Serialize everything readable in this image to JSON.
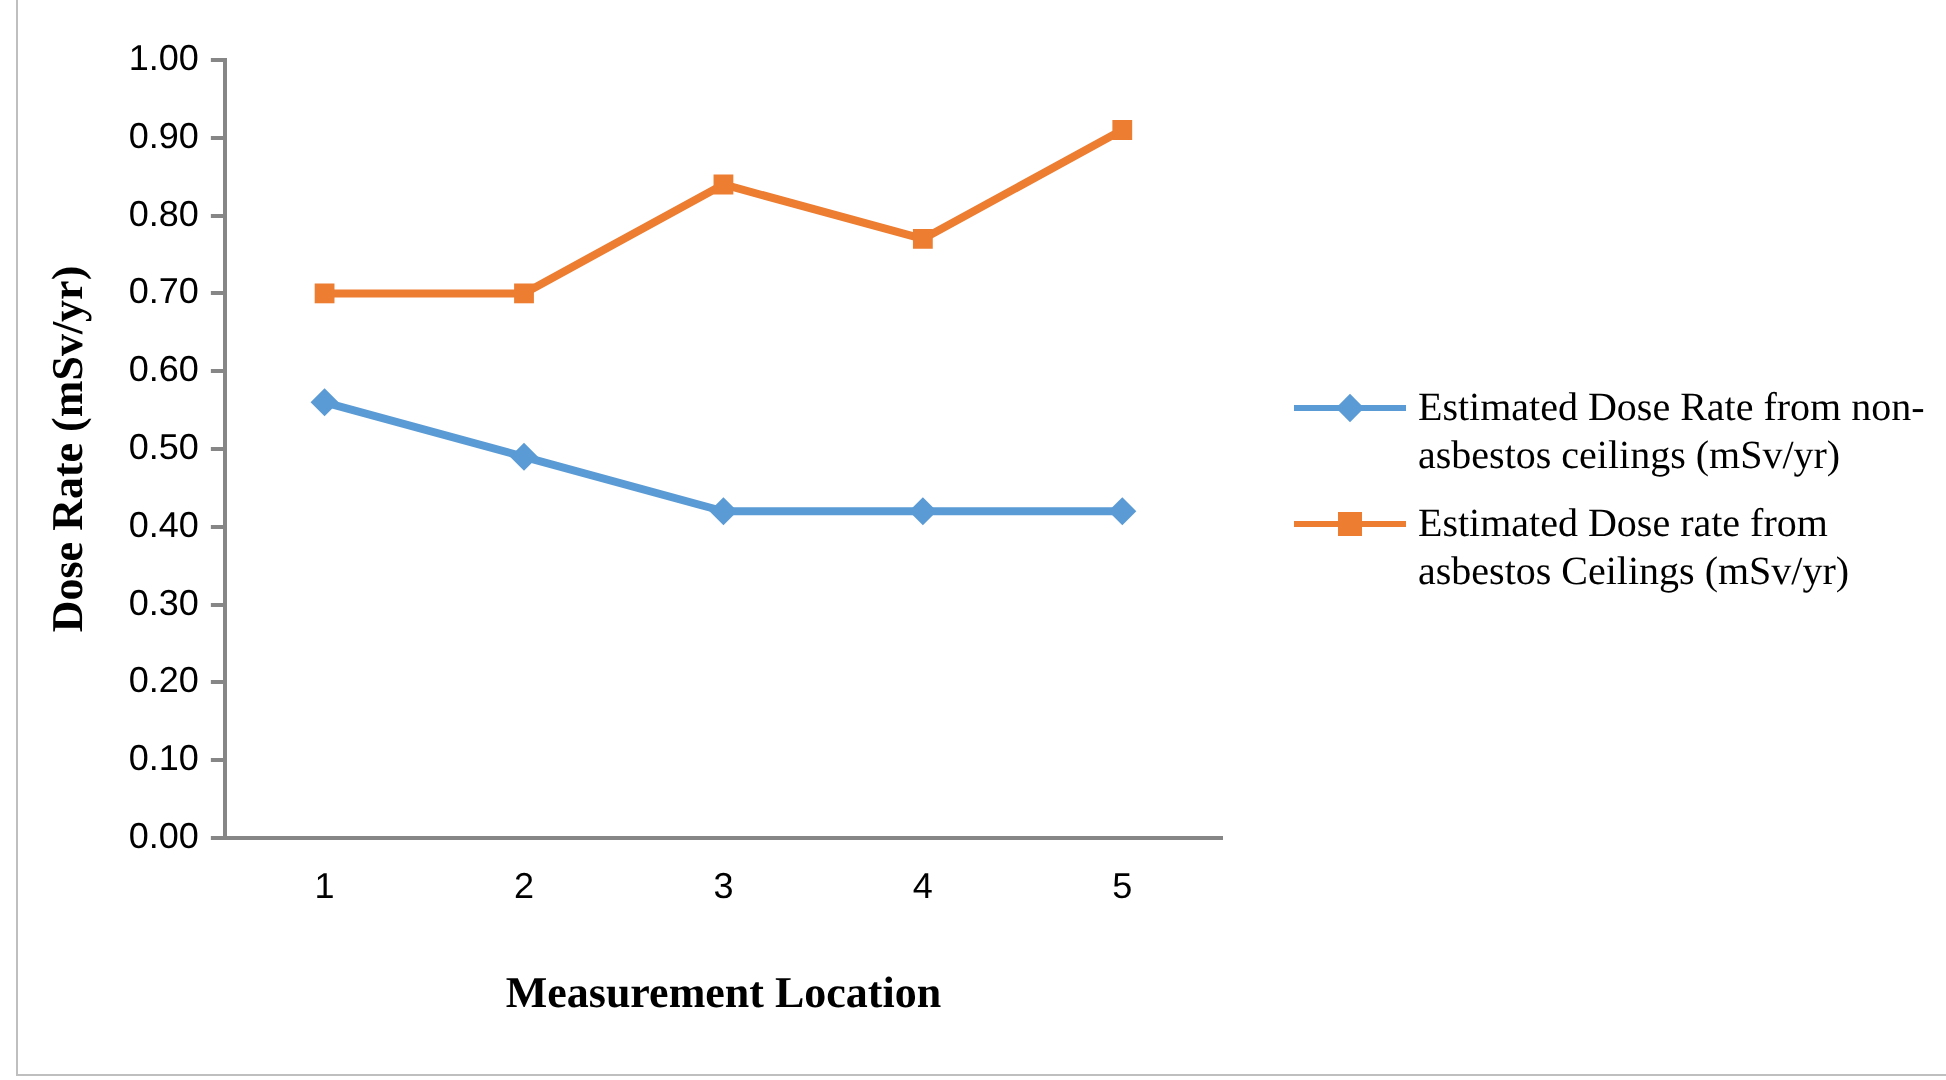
{
  "chart_data": {
    "type": "line",
    "xlabel": "Measurement Location",
    "ylabel": "Dose Rate (mSv/yr)",
    "categories": [
      "1",
      "2",
      "3",
      "4",
      "5"
    ],
    "series": [
      {
        "name": "Estimated Dose Rate from non-asbestos ceilings (mSv/yr)",
        "color": "#5b9bd5",
        "marker": "diamond",
        "values": [
          0.56,
          0.49,
          0.42,
          0.42,
          0.42
        ]
      },
      {
        "name": "Estimated Dose rate from asbestos Ceilings (mSv/yr)",
        "color": "#ed7d31",
        "marker": "square",
        "values": [
          0.7,
          0.7,
          0.84,
          0.77,
          0.91
        ]
      }
    ],
    "ylim": [
      0,
      1
    ],
    "yticks": [
      {
        "value": 0,
        "label": "0.00"
      },
      {
        "value": 0.1,
        "label": "0.10"
      },
      {
        "value": 0.2,
        "label": "0.20"
      },
      {
        "value": 0.3,
        "label": "0.30"
      },
      {
        "value": 0.4,
        "label": "0.40"
      },
      {
        "value": 0.5,
        "label": "0.50"
      },
      {
        "value": 0.6,
        "label": "0.60"
      },
      {
        "value": 0.7,
        "label": "0.70"
      },
      {
        "value": 0.8,
        "label": "0.80"
      },
      {
        "value": 0.9,
        "label": "0.90"
      },
      {
        "value": 1,
        "label": "1.00"
      }
    ],
    "legend": "right",
    "line_style": "solid"
  }
}
